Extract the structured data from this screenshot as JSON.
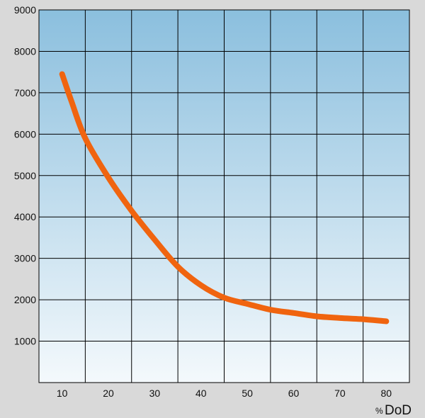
{
  "chart_data": {
    "type": "line",
    "title": "",
    "ylabel": "",
    "xlabel_prefix": "%",
    "xlabel": "DoD",
    "xlim": [
      5,
      85
    ],
    "ylim": [
      0,
      9000
    ],
    "x_ticks": [
      10,
      20,
      30,
      40,
      50,
      60,
      70,
      80
    ],
    "y_ticks": [
      1000,
      2000,
      3000,
      4000,
      5000,
      6000,
      7000,
      8000,
      9000
    ],
    "grid": true,
    "x_gridlines": [
      15,
      25,
      35,
      45,
      55,
      65,
      75
    ],
    "background_gradient": [
      "#8bbfde",
      "#f4f9fc"
    ],
    "line_color": "#f0640f",
    "series": [
      {
        "x": [
          10,
          12,
          15,
          20,
          25,
          30,
          35,
          40,
          45,
          50,
          55,
          60,
          65,
          70,
          75,
          80
        ],
        "y": [
          7450,
          6800,
          5900,
          4950,
          4150,
          3450,
          2800,
          2350,
          2050,
          1900,
          1760,
          1680,
          1600,
          1560,
          1530,
          1480
        ]
      }
    ]
  }
}
